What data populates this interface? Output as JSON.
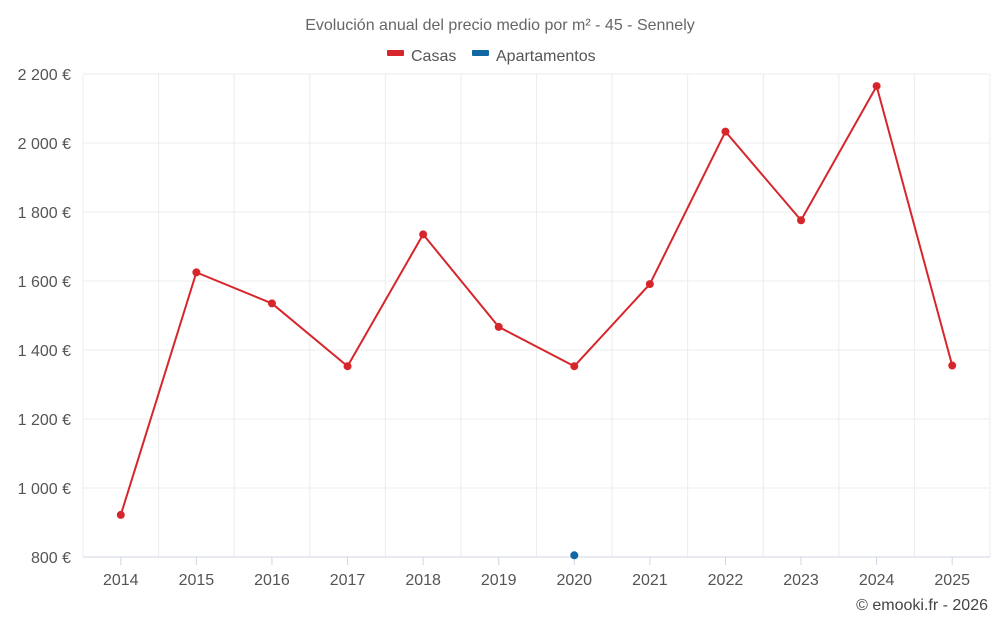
{
  "chart_data": {
    "type": "line",
    "title": "Evolución anual del precio medio por m² - 45 - Sennely",
    "categories": [
      "2014",
      "2015",
      "2016",
      "2017",
      "2018",
      "2019",
      "2020",
      "2021",
      "2022",
      "2023",
      "2024",
      "2025"
    ],
    "series": [
      {
        "name": "Casas",
        "color": "#d7262b",
        "values": [
          922,
          1625,
          1535,
          1353,
          1735,
          1467,
          1353,
          1591,
          2033,
          1776,
          2165,
          1355
        ]
      },
      {
        "name": "Apartamentos",
        "color": "#0f67a4",
        "values": [
          null,
          null,
          null,
          null,
          null,
          null,
          805,
          null,
          null,
          null,
          null,
          null
        ]
      }
    ],
    "y_ticks": [
      "800 €",
      "1 000 €",
      "1 200 €",
      "1 400 €",
      "1 600 €",
      "1 800 €",
      "2 000 €",
      "2 200 €"
    ],
    "ylim": [
      800,
      2200
    ],
    "grid": true,
    "legend_position": "top-center",
    "credits": "© emooki.fr - 2026"
  }
}
